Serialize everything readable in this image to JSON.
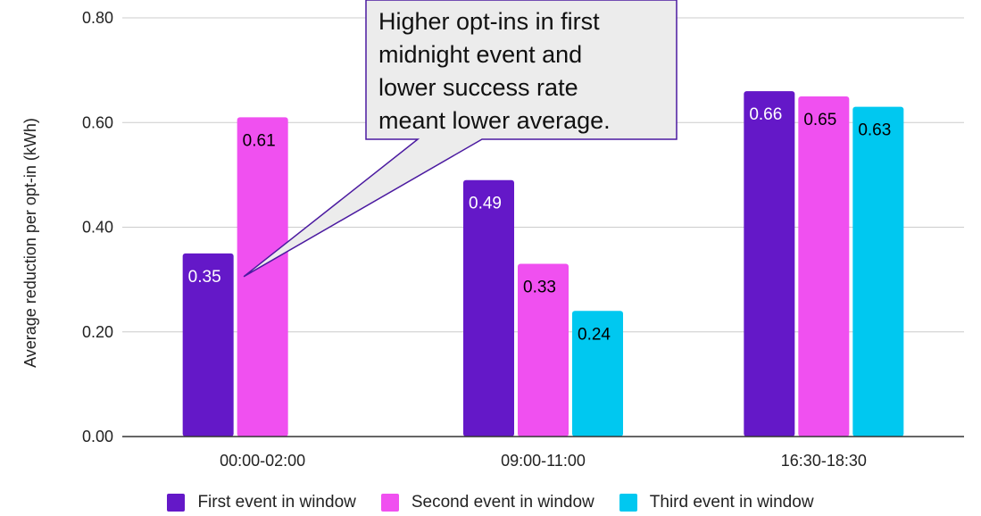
{
  "chart_data": {
    "type": "bar",
    "ylabel": "Average reduction per opt-in (kWh)",
    "xlabel": "",
    "ylim": [
      0,
      0.8
    ],
    "yticks": [
      "0.00",
      "0.20",
      "0.40",
      "0.60",
      "0.80"
    ],
    "ytick_values": [
      0,
      0.2,
      0.4,
      0.6,
      0.8
    ],
    "categories": [
      "00:00-02:00",
      "09:00-11:00",
      "16:30-18:30"
    ],
    "series": [
      {
        "name": "First event in window",
        "color": "#6418c8",
        "values": [
          0.35,
          0.49,
          0.66
        ],
        "labels": [
          "0.35",
          "0.49",
          "0.66"
        ],
        "label_color": "#ffffff"
      },
      {
        "name": "Second event in window",
        "color": "#f050f0",
        "values": [
          0.61,
          0.33,
          0.65
        ],
        "labels": [
          "0.61",
          "0.33",
          "0.65"
        ],
        "label_color": "#000000"
      },
      {
        "name": "Third event in window",
        "color": "#00c8f0",
        "values": [
          null,
          0.24,
          0.63
        ],
        "labels": [
          "",
          "0.24",
          "0.63"
        ],
        "label_color": "#000000"
      }
    ],
    "grid": true,
    "legend_position": "bottom",
    "annotation": {
      "lines": [
        "Higher opt-ins in first",
        "midnight event and",
        "lower success rate",
        "meant lower average."
      ],
      "points_to": {
        "category": "00:00-02:00",
        "series": "First event in window"
      }
    }
  }
}
